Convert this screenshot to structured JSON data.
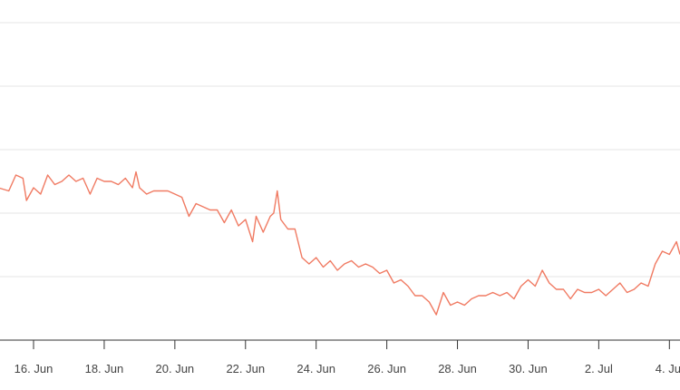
{
  "chart_data": {
    "type": "line",
    "title": "",
    "xlabel": "",
    "ylabel": "",
    "grid": true,
    "y_ticks_labeled": false,
    "x_ticks": [
      {
        "label": "16. Jun",
        "day": 16
      },
      {
        "label": "18. Jun",
        "day": 18
      },
      {
        "label": "20. Jun",
        "day": 20
      },
      {
        "label": "22. Jun",
        "day": 22
      },
      {
        "label": "24. Jun",
        "day": 24
      },
      {
        "label": "26. Jun",
        "day": 26
      },
      {
        "label": "28. Jun",
        "day": 28
      },
      {
        "label": "30. Jun",
        "day": 30
      },
      {
        "label": "2. Jul",
        "day": 32
      },
      {
        "label": "4. Jul",
        "day": 34
      }
    ],
    "xlim_days": [
      15.05,
      34.3
    ],
    "ylim": [
      0,
      5
    ],
    "series": [
      {
        "color": "#f07a62",
        "points": [
          [
            15.0,
            2.4
          ],
          [
            15.3,
            2.35
          ],
          [
            15.5,
            2.6
          ],
          [
            15.7,
            2.55
          ],
          [
            15.8,
            2.2
          ],
          [
            16.0,
            2.4
          ],
          [
            16.2,
            2.3
          ],
          [
            16.4,
            2.6
          ],
          [
            16.6,
            2.45
          ],
          [
            16.8,
            2.5
          ],
          [
            17.0,
            2.6
          ],
          [
            17.2,
            2.5
          ],
          [
            17.4,
            2.55
          ],
          [
            17.6,
            2.3
          ],
          [
            17.8,
            2.55
          ],
          [
            18.0,
            2.5
          ],
          [
            18.2,
            2.5
          ],
          [
            18.4,
            2.45
          ],
          [
            18.6,
            2.55
          ],
          [
            18.8,
            2.4
          ],
          [
            18.9,
            2.65
          ],
          [
            19.0,
            2.4
          ],
          [
            19.2,
            2.3
          ],
          [
            19.4,
            2.35
          ],
          [
            19.6,
            2.35
          ],
          [
            19.8,
            2.35
          ],
          [
            20.0,
            2.3
          ],
          [
            20.2,
            2.25
          ],
          [
            20.4,
            1.95
          ],
          [
            20.6,
            2.15
          ],
          [
            20.8,
            2.1
          ],
          [
            21.0,
            2.05
          ],
          [
            21.2,
            2.05
          ],
          [
            21.4,
            1.85
          ],
          [
            21.6,
            2.05
          ],
          [
            21.8,
            1.8
          ],
          [
            22.0,
            1.9
          ],
          [
            22.2,
            1.55
          ],
          [
            22.3,
            1.95
          ],
          [
            22.5,
            1.7
          ],
          [
            22.7,
            1.95
          ],
          [
            22.8,
            2.0
          ],
          [
            22.9,
            2.35
          ],
          [
            23.0,
            1.9
          ],
          [
            23.2,
            1.75
          ],
          [
            23.4,
            1.75
          ],
          [
            23.6,
            1.3
          ],
          [
            23.8,
            1.2
          ],
          [
            24.0,
            1.3
          ],
          [
            24.2,
            1.15
          ],
          [
            24.4,
            1.25
          ],
          [
            24.6,
            1.1
          ],
          [
            24.8,
            1.2
          ],
          [
            25.0,
            1.25
          ],
          [
            25.2,
            1.15
          ],
          [
            25.4,
            1.2
          ],
          [
            25.6,
            1.15
          ],
          [
            25.8,
            1.05
          ],
          [
            26.0,
            1.1
          ],
          [
            26.2,
            0.9
          ],
          [
            26.4,
            0.95
          ],
          [
            26.6,
            0.85
          ],
          [
            26.8,
            0.7
          ],
          [
            27.0,
            0.7
          ],
          [
            27.2,
            0.6
          ],
          [
            27.4,
            0.4
          ],
          [
            27.6,
            0.75
          ],
          [
            27.8,
            0.55
          ],
          [
            28.0,
            0.6
          ],
          [
            28.2,
            0.55
          ],
          [
            28.4,
            0.65
          ],
          [
            28.6,
            0.7
          ],
          [
            28.8,
            0.7
          ],
          [
            29.0,
            0.75
          ],
          [
            29.2,
            0.7
          ],
          [
            29.4,
            0.75
          ],
          [
            29.6,
            0.65
          ],
          [
            29.8,
            0.85
          ],
          [
            30.0,
            0.95
          ],
          [
            30.2,
            0.85
          ],
          [
            30.4,
            1.1
          ],
          [
            30.6,
            0.9
          ],
          [
            30.8,
            0.8
          ],
          [
            31.0,
            0.8
          ],
          [
            31.2,
            0.65
          ],
          [
            31.4,
            0.8
          ],
          [
            31.6,
            0.75
          ],
          [
            31.8,
            0.75
          ],
          [
            32.0,
            0.8
          ],
          [
            32.2,
            0.7
          ],
          [
            32.4,
            0.8
          ],
          [
            32.6,
            0.9
          ],
          [
            32.8,
            0.75
          ],
          [
            33.0,
            0.8
          ],
          [
            33.2,
            0.9
          ],
          [
            33.4,
            0.85
          ],
          [
            33.6,
            1.2
          ],
          [
            33.8,
            1.4
          ],
          [
            34.0,
            1.35
          ],
          [
            34.2,
            1.55
          ],
          [
            34.3,
            1.35
          ]
        ]
      }
    ]
  }
}
